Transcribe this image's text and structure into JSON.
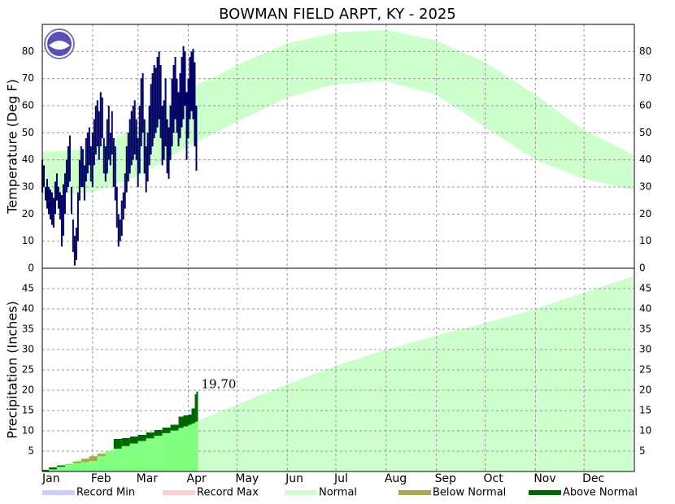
{
  "chart_data": [
    {
      "type": "range-bar",
      "title": "BOWMAN FIELD ARPT, KY - 2025",
      "ylabel": "Temperature (Deg F)",
      "xlim": [
        1,
        366
      ],
      "ylim": [
        0,
        90
      ],
      "yticks": [
        0,
        10,
        20,
        30,
        40,
        50,
        60,
        70,
        80
      ],
      "grid": true,
      "normal": {
        "color": "#ccffcc",
        "x": [
          1,
          32,
          60,
          91,
          121,
          152,
          182,
          213,
          244,
          274,
          305,
          335,
          365
        ],
        "high": [
          43,
          44,
          52,
          66,
          75,
          83,
          87,
          88,
          84,
          76,
          64,
          51,
          42
        ],
        "low": [
          27,
          28,
          34,
          45,
          54,
          63,
          68,
          69,
          64,
          52,
          40,
          33,
          29
        ]
      },
      "observed": {
        "color": "#000066",
        "x": [
          1,
          2,
          3,
          4,
          5,
          6,
          7,
          8,
          9,
          10,
          11,
          12,
          13,
          14,
          15,
          16,
          17,
          18,
          19,
          20,
          21,
          22,
          23,
          24,
          25,
          26,
          27,
          28,
          29,
          30,
          31,
          32,
          33,
          34,
          35,
          36,
          37,
          38,
          39,
          40,
          41,
          42,
          43,
          44,
          45,
          46,
          47,
          48,
          49,
          50,
          51,
          52,
          53,
          54,
          55,
          56,
          57,
          58,
          59,
          60,
          61,
          62,
          63,
          64,
          65,
          66,
          67,
          68,
          69,
          70,
          71,
          72,
          73,
          74,
          75,
          76,
          77,
          78,
          79,
          80,
          81,
          82,
          83,
          84,
          85,
          86,
          87,
          88,
          89,
          90,
          91,
          92,
          93,
          94,
          95,
          96
        ],
        "high": [
          40,
          38,
          30,
          33,
          30,
          29,
          28,
          26,
          32,
          35,
          30,
          28,
          27,
          31,
          35,
          40,
          45,
          49,
          30,
          18,
          12,
          15,
          28,
          40,
          45,
          44,
          38,
          48,
          50,
          52,
          45,
          50,
          55,
          60,
          62,
          58,
          65,
          63,
          48,
          45,
          55,
          60,
          50,
          58,
          48,
          45,
          30,
          20,
          18,
          25,
          28,
          35,
          45,
          50,
          55,
          58,
          60,
          62,
          55,
          48,
          60,
          70,
          72,
          55,
          45,
          50,
          60,
          68,
          72,
          75,
          74,
          78,
          80,
          75,
          60,
          62,
          70,
          55,
          52,
          60,
          70,
          75,
          78,
          70,
          65,
          72,
          78,
          82,
          80,
          65,
          70,
          78,
          80,
          81,
          76,
          60
        ],
        "low": [
          28,
          30,
          25,
          22,
          20,
          18,
          16,
          15,
          20,
          25,
          22,
          18,
          8,
          12,
          20,
          28,
          30,
          32,
          20,
          6,
          1,
          3,
          10,
          25,
          30,
          30,
          25,
          32,
          35,
          38,
          32,
          30,
          38,
          42,
          45,
          40,
          45,
          48,
          35,
          32,
          35,
          40,
          38,
          42,
          30,
          25,
          15,
          8,
          10,
          12,
          18,
          22,
          28,
          32,
          35,
          38,
          40,
          42,
          40,
          30,
          35,
          45,
          50,
          35,
          28,
          32,
          38,
          42,
          45,
          48,
          50,
          52,
          55,
          48,
          38,
          40,
          45,
          35,
          33,
          40,
          45,
          50,
          55,
          50,
          45,
          48,
          52,
          55,
          60,
          40,
          48,
          55,
          58,
          55,
          45,
          36
        ]
      }
    },
    {
      "type": "area",
      "ylabel": "Precipitation (Inches)",
      "xlim": [
        1,
        366
      ],
      "xticks": [
        {
          "value": 1,
          "label": "Jan"
        },
        {
          "value": 32,
          "label": "Feb"
        },
        {
          "value": 60,
          "label": "Mar"
        },
        {
          "value": 91,
          "label": "Apr"
        },
        {
          "value": 121,
          "label": "May"
        },
        {
          "value": 152,
          "label": "Jun"
        },
        {
          "value": 182,
          "label": "Jul"
        },
        {
          "value": 213,
          "label": "Aug"
        },
        {
          "value": 244,
          "label": "Sep"
        },
        {
          "value": 274,
          "label": "Oct"
        },
        {
          "value": 305,
          "label": "Nov"
        },
        {
          "value": 335,
          "label": "Dec"
        }
      ],
      "ylim": [
        0,
        50
      ],
      "yticks": [
        5,
        10,
        15,
        20,
        25,
        30,
        35,
        40,
        45
      ],
      "grid": true,
      "normal": {
        "color": "#ccffcc",
        "x": [
          1,
          32,
          60,
          91,
          121,
          152,
          182,
          213,
          244,
          274,
          305,
          335,
          365
        ],
        "values": [
          0,
          4,
          7.5,
          11.5,
          16.5,
          21.5,
          26,
          30,
          33.5,
          36.5,
          40,
          44,
          48
        ]
      },
      "observed": {
        "fill_color": "#80ff80",
        "above_color": "#006600",
        "below_color": "#a8a850",
        "x": [
          1,
          5,
          10,
          15,
          20,
          25,
          30,
          35,
          40,
          45,
          50,
          55,
          60,
          65,
          70,
          75,
          80,
          85,
          88,
          91,
          93,
          95,
          96
        ],
        "values": [
          0.4,
          1.0,
          1.5,
          1.7,
          2.0,
          2.3,
          2.6,
          3.8,
          5.0,
          8.0,
          8.2,
          8.6,
          9.0,
          9.6,
          10.2,
          10.8,
          11.5,
          13.5,
          13.8,
          14.0,
          15.5,
          19.0,
          19.7
        ],
        "value_labels": [
          null,
          null,
          null,
          null,
          null,
          null,
          null,
          null,
          null,
          null,
          null,
          null,
          null,
          null,
          null,
          null,
          null,
          null,
          null,
          null,
          null,
          null,
          "19.70"
        ]
      },
      "legend": [
        {
          "name": "Record Min",
          "color": "#ccccff"
        },
        {
          "name": "Record Max",
          "color": "#ffcccc"
        },
        {
          "name": "Normal",
          "color": "#ccffcc"
        },
        {
          "name": "Below Normal",
          "color": "#a8a850"
        },
        {
          "name": "Above Normal",
          "color": "#006600"
        }
      ]
    }
  ]
}
